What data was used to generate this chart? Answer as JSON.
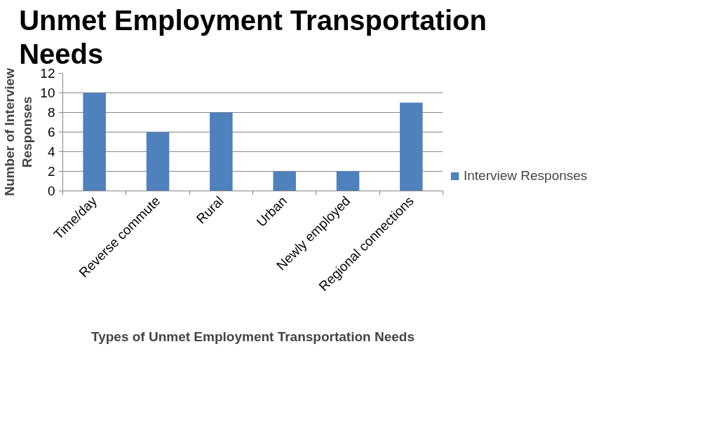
{
  "chart_data": {
    "type": "bar",
    "title": "Unmet Employment Transportation Needs",
    "xlabel": "Types of Unmet Employment Transportation Needs",
    "ylabel": "Number of Interview Responses",
    "categories": [
      "Time/day",
      "Reverse commute",
      "Rural",
      "Urban",
      "Newly employed",
      "Regional connections"
    ],
    "series": [
      {
        "name": "Interview Responses",
        "color": "#4f81bd",
        "values": [
          10,
          6,
          8,
          2,
          2,
          9
        ]
      }
    ],
    "ylim": [
      0,
      12
    ],
    "yticks": [
      0,
      2,
      4,
      6,
      8,
      10,
      12
    ],
    "grid": "y",
    "legend": "right"
  }
}
